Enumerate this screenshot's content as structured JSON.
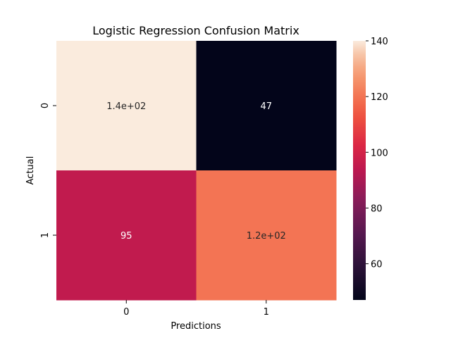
{
  "chart_data": {
    "type": "heatmap",
    "title": "Logistic Regression Confusion Matrix",
    "xlabel": "Predictions",
    "ylabel": "Actual",
    "x_categories": [
      "0",
      "1"
    ],
    "y_categories": [
      "0",
      "1"
    ],
    "values": [
      [
        140,
        47
      ],
      [
        95,
        120
      ]
    ],
    "cell_labels": [
      [
        "1.4e+02",
        "47"
      ],
      [
        "95",
        "1.2e+02"
      ]
    ],
    "colorbar": {
      "range": [
        47,
        140
      ],
      "ticks": [
        60,
        80,
        100,
        120,
        140
      ],
      "tick_labels": [
        "60",
        "80",
        "100",
        "120",
        "140"
      ],
      "colormap": "rocket"
    },
    "legend": "colorbar-right",
    "grid": false
  }
}
